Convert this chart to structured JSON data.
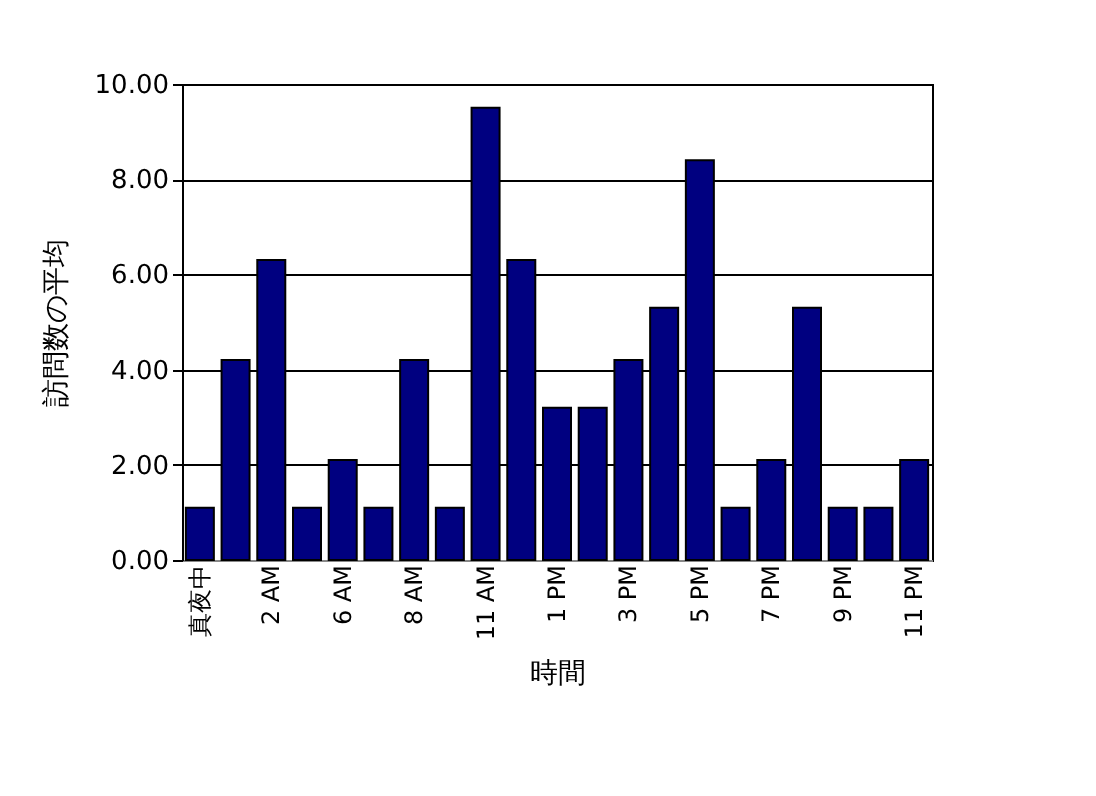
{
  "chart_data": {
    "type": "bar",
    "xlabel": "時間",
    "ylabel": "訪問数の平均",
    "categories": [
      "真夜中",
      null,
      "2 AM",
      null,
      "6 AM",
      null,
      "8 AM",
      null,
      "11 AM",
      null,
      "1 PM",
      null,
      "3 PM",
      null,
      "5 PM",
      null,
      "7 PM",
      null,
      "9 PM",
      null,
      "11 PM"
    ],
    "values": [
      1.1,
      4.2,
      6.3,
      1.1,
      2.1,
      1.1,
      4.2,
      1.1,
      9.5,
      6.3,
      3.2,
      3.2,
      4.2,
      5.3,
      8.4,
      1.1,
      2.1,
      5.3,
      1.1,
      1.1,
      2.1
    ],
    "color": "#000080",
    "ylim": [
      0,
      10
    ],
    "yticks": [
      {
        "value": 0,
        "label": "0.00"
      },
      {
        "value": 2,
        "label": "2.00"
      },
      {
        "value": 4,
        "label": "4.00"
      },
      {
        "value": 6,
        "label": "6.00"
      },
      {
        "value": 8,
        "label": "8.00"
      },
      {
        "value": 10,
        "label": "10.00"
      }
    ],
    "grid": "y"
  }
}
